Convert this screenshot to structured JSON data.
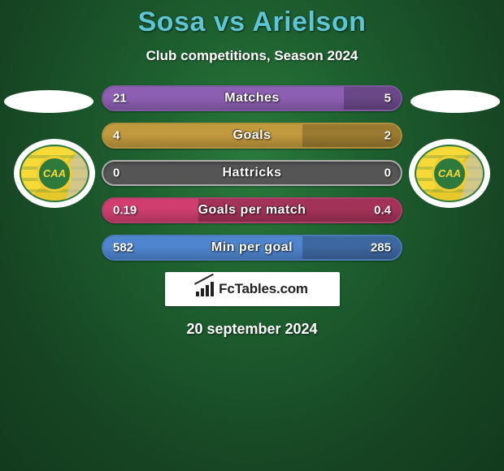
{
  "title": "Sosa vs Arielson",
  "subtitle": "Club competitions, Season 2024",
  "date": "20 september 2024",
  "brand": "FcTables.com",
  "colors": {
    "title": "#5dc6d4",
    "text": "#ffffff",
    "brand_bg": "#ffffff",
    "brand_text": "#222222"
  },
  "player_left": {
    "name": "Sosa",
    "club_code": "CAA"
  },
  "player_right": {
    "name": "Arielson",
    "club_code": "CAA"
  },
  "bars": [
    {
      "label": "Matches",
      "left_value": "21",
      "right_value": "5",
      "left_raw": 21,
      "right_raw": 5,
      "left_pct": 81,
      "right_pct": 19,
      "border_color": "#7a5a9a",
      "fill_left_color": "#8d5fb3",
      "fill_right_color": "#6a4787",
      "track_color": "#4a3360"
    },
    {
      "label": "Goals",
      "left_value": "4",
      "right_value": "2",
      "left_raw": 4,
      "right_raw": 2,
      "left_pct": 67,
      "right_pct": 33,
      "border_color": "#b19040",
      "fill_left_color": "#c29a3e",
      "fill_right_color": "#9a7a30",
      "track_color": "#6b5423"
    },
    {
      "label": "Hattricks",
      "left_value": "0",
      "right_value": "0",
      "left_raw": 0,
      "right_raw": 0,
      "left_pct": 0,
      "right_pct": 0,
      "border_color": "#adadad",
      "fill_left_color": "#bfbfbf",
      "fill_right_color": "#9a9a9a",
      "track_color": "#555555"
    },
    {
      "label": "Goals per match",
      "left_value": "0.19",
      "right_value": "0.4",
      "left_raw": 0.19,
      "right_raw": 0.4,
      "left_pct": 32,
      "right_pct": 68,
      "border_color": "#b03f6c",
      "fill_left_color": "#cf3e6f",
      "fill_right_color": "#a33258",
      "track_color": "#6a2542"
    },
    {
      "label": "Min per goal",
      "left_value": "582",
      "right_value": "285",
      "left_raw": 582,
      "right_raw": 285,
      "left_pct": 67,
      "right_pct": 33,
      "border_color": "#4a7ab8",
      "fill_left_color": "#4f85cf",
      "fill_right_color": "#3d67a0",
      "track_color": "#2d4a70"
    }
  ]
}
